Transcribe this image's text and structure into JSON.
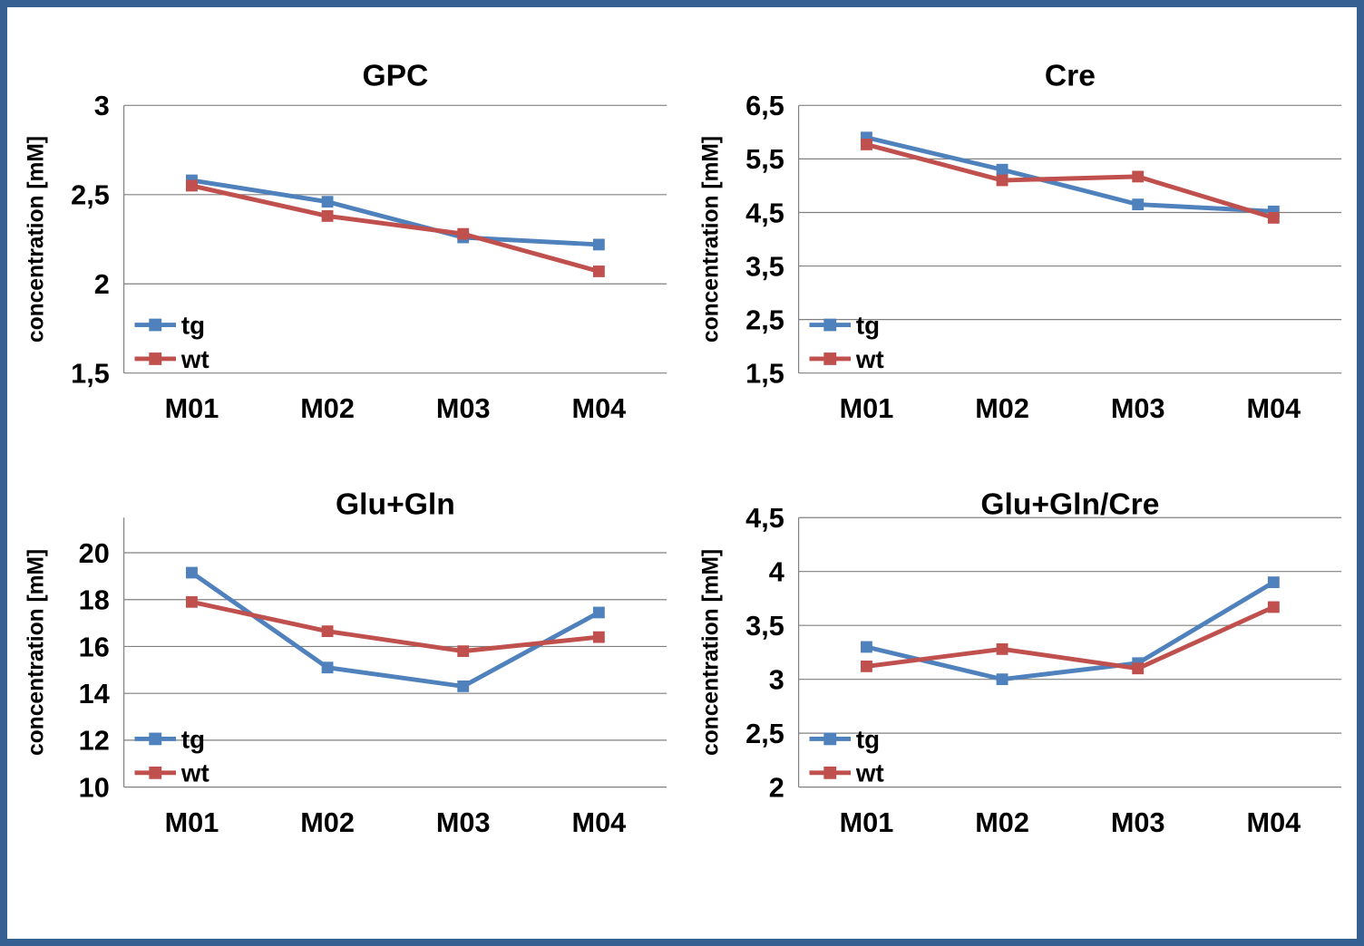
{
  "figure": {
    "background": "#FFFFFF",
    "border_color": "#376092",
    "grid_color": "#808080",
    "axis_color": "#808080",
    "text_color": "#000000",
    "series_colors": {
      "tg": "#4F81BD",
      "wt": "#C0504D"
    }
  },
  "chart_data": [
    {
      "type": "line",
      "title": "GPC",
      "ylabel": "concentration [mM]",
      "categories": [
        "M01",
        "M02",
        "M03",
        "M04"
      ],
      "ylim": [
        1.5,
        3.0
      ],
      "yticks": [
        {
          "v": 1.5,
          "label": "1,5"
        },
        {
          "v": 2.0,
          "label": "2"
        },
        {
          "v": 2.5,
          "label": "2,5"
        },
        {
          "v": 3.0,
          "label": "3"
        }
      ],
      "grid": true,
      "legend_position": "inside-bottom-left",
      "series": [
        {
          "name": "tg",
          "color": "#4F81BD",
          "marker": "square",
          "values": [
            2.58,
            2.46,
            2.26,
            2.22
          ]
        },
        {
          "name": "wt",
          "color": "#C0504D",
          "marker": "square",
          "values": [
            2.55,
            2.38,
            2.28,
            2.07
          ]
        }
      ]
    },
    {
      "type": "line",
      "title": "Cre",
      "ylabel": "concentration [mM]",
      "categories": [
        "M01",
        "M02",
        "M03",
        "M04"
      ],
      "ylim": [
        1.5,
        6.5
      ],
      "yticks": [
        {
          "v": 1.5,
          "label": "1,5"
        },
        {
          "v": 2.5,
          "label": "2,5"
        },
        {
          "v": 3.5,
          "label": "3,5"
        },
        {
          "v": 4.5,
          "label": "4,5"
        },
        {
          "v": 5.5,
          "label": "5,5"
        },
        {
          "v": 6.5,
          "label": "6,5"
        }
      ],
      "grid": true,
      "legend_position": "inside-bottom-left",
      "series": [
        {
          "name": "tg",
          "color": "#4F81BD",
          "marker": "square",
          "values": [
            5.9,
            5.3,
            4.65,
            4.52
          ]
        },
        {
          "name": "wt",
          "color": "#C0504D",
          "marker": "square",
          "values": [
            5.77,
            5.1,
            5.17,
            4.4
          ]
        }
      ]
    },
    {
      "type": "line",
      "title": "Glu+Gln",
      "ylabel": "concentration [mM]",
      "categories": [
        "M01",
        "M02",
        "M03",
        "M04"
      ],
      "ylim": [
        10,
        21.5
      ],
      "yticks": [
        {
          "v": 10,
          "label": "10"
        },
        {
          "v": 12,
          "label": "12"
        },
        {
          "v": 14,
          "label": "14"
        },
        {
          "v": 16,
          "label": "16"
        },
        {
          "v": 18,
          "label": "18"
        },
        {
          "v": 20,
          "label": "20"
        }
      ],
      "grid": true,
      "legend_position": "inside-bottom-left",
      "series": [
        {
          "name": "tg",
          "color": "#4F81BD",
          "marker": "square",
          "values": [
            19.15,
            15.1,
            14.3,
            17.45
          ]
        },
        {
          "name": "wt",
          "color": "#C0504D",
          "marker": "square",
          "values": [
            17.9,
            16.65,
            15.8,
            16.4
          ]
        }
      ]
    },
    {
      "type": "line",
      "title": "Glu+Gln/Cre",
      "ylabel": "concentration [mM]",
      "categories": [
        "M01",
        "M02",
        "M03",
        "M04"
      ],
      "ylim": [
        2.0,
        4.5
      ],
      "yticks": [
        {
          "v": 2.0,
          "label": "2"
        },
        {
          "v": 2.5,
          "label": "2,5"
        },
        {
          "v": 3.0,
          "label": "3"
        },
        {
          "v": 3.5,
          "label": "3,5"
        },
        {
          "v": 4.0,
          "label": "4"
        },
        {
          "v": 4.5,
          "label": "4,5"
        }
      ],
      "grid": true,
      "legend_position": "inside-bottom-left",
      "series": [
        {
          "name": "tg",
          "color": "#4F81BD",
          "marker": "square",
          "values": [
            3.3,
            3.0,
            3.15,
            3.9
          ]
        },
        {
          "name": "wt",
          "color": "#C0504D",
          "marker": "square",
          "values": [
            3.12,
            3.28,
            3.1,
            3.67
          ]
        }
      ]
    }
  ]
}
